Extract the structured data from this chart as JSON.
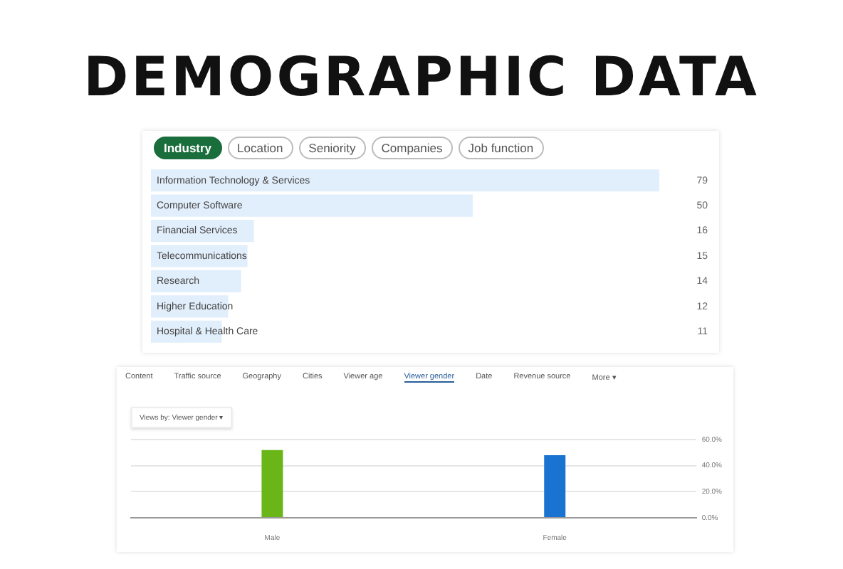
{
  "chart_data": [
    {
      "type": "bar",
      "orientation": "horizontal",
      "title": "DEMOGRAPHIC DATA",
      "annotations": [
        "Industry",
        "Location",
        "Seniority",
        "Companies",
        "Job function"
      ],
      "categories": [
        "Information Technology & Services",
        "Computer Software",
        "Financial Services",
        "Telecommunications",
        "Research",
        "Higher Education",
        "Hospital & Health Care"
      ],
      "values": [
        79,
        50,
        16,
        15,
        14,
        12,
        11
      ],
      "color": "#e1eefb",
      "data_labels": true
    },
    {
      "type": "bar",
      "annotations": [
        "Content",
        "Traffic source",
        "Geography",
        "Cities",
        "Viewer age",
        "Viewer gender",
        "Date",
        "Revenue source",
        "More ▾",
        "Views by: Viewer gender ▾"
      ],
      "categories": [
        "Male",
        "Female"
      ],
      "values": [
        52,
        48
      ],
      "colors": [
        "#6ab619",
        "#1a73d0"
      ],
      "ylim": [
        0,
        60
      ],
      "yticks": [
        {
          "value": 0,
          "label": "0.0%"
        },
        {
          "value": 20,
          "label": "20.0%"
        },
        {
          "value": 40,
          "label": "40.0%"
        },
        {
          "value": 60,
          "label": "60.0%"
        }
      ],
      "grid": "y",
      "legend": false
    }
  ]
}
